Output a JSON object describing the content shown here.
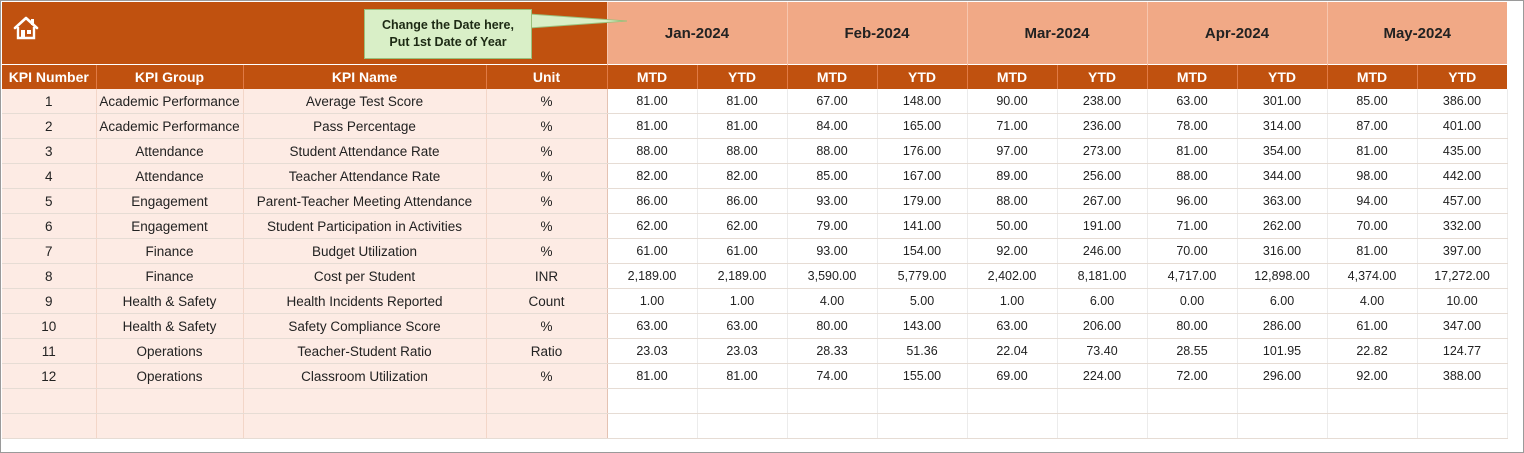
{
  "callout": {
    "line1": "Change the Date here,",
    "line2": "Put 1st Date of Year"
  },
  "months": [
    "Jan-2024",
    "Feb-2024",
    "Mar-2024",
    "Apr-2024",
    "May-2024"
  ],
  "headers": {
    "kpi_number": "KPI Number",
    "kpi_group": "KPI Group",
    "kpi_name": "KPI Name",
    "unit": "Unit",
    "mtd": "MTD",
    "ytd": "YTD"
  },
  "rows": [
    {
      "num": "1",
      "group": "Academic Performance",
      "name": "Average Test Score",
      "unit": "%",
      "values": [
        "81.00",
        "81.00",
        "67.00",
        "148.00",
        "90.00",
        "238.00",
        "63.00",
        "301.00",
        "85.00",
        "386.00"
      ]
    },
    {
      "num": "2",
      "group": "Academic Performance",
      "name": "Pass Percentage",
      "unit": "%",
      "values": [
        "81.00",
        "81.00",
        "84.00",
        "165.00",
        "71.00",
        "236.00",
        "78.00",
        "314.00",
        "87.00",
        "401.00"
      ]
    },
    {
      "num": "3",
      "group": "Attendance",
      "name": "Student Attendance Rate",
      "unit": "%",
      "values": [
        "88.00",
        "88.00",
        "88.00",
        "176.00",
        "97.00",
        "273.00",
        "81.00",
        "354.00",
        "81.00",
        "435.00"
      ]
    },
    {
      "num": "4",
      "group": "Attendance",
      "name": "Teacher Attendance Rate",
      "unit": "%",
      "values": [
        "82.00",
        "82.00",
        "85.00",
        "167.00",
        "89.00",
        "256.00",
        "88.00",
        "344.00",
        "98.00",
        "442.00"
      ]
    },
    {
      "num": "5",
      "group": "Engagement",
      "name": "Parent-Teacher Meeting Attendance",
      "unit": "%",
      "values": [
        "86.00",
        "86.00",
        "93.00",
        "179.00",
        "88.00",
        "267.00",
        "96.00",
        "363.00",
        "94.00",
        "457.00"
      ]
    },
    {
      "num": "6",
      "group": "Engagement",
      "name": "Student Participation in Activities",
      "unit": "%",
      "values": [
        "62.00",
        "62.00",
        "79.00",
        "141.00",
        "50.00",
        "191.00",
        "71.00",
        "262.00",
        "70.00",
        "332.00"
      ]
    },
    {
      "num": "7",
      "group": "Finance",
      "name": "Budget Utilization",
      "unit": "%",
      "values": [
        "61.00",
        "61.00",
        "93.00",
        "154.00",
        "92.00",
        "246.00",
        "70.00",
        "316.00",
        "81.00",
        "397.00"
      ]
    },
    {
      "num": "8",
      "group": "Finance",
      "name": "Cost per Student",
      "unit": "INR",
      "values": [
        "2,189.00",
        "2,189.00",
        "3,590.00",
        "5,779.00",
        "2,402.00",
        "8,181.00",
        "4,717.00",
        "12,898.00",
        "4,374.00",
        "17,272.00"
      ]
    },
    {
      "num": "9",
      "group": "Health & Safety",
      "name": "Health Incidents Reported",
      "unit": "Count",
      "values": [
        "1.00",
        "1.00",
        "4.00",
        "5.00",
        "1.00",
        "6.00",
        "0.00",
        "6.00",
        "4.00",
        "10.00"
      ]
    },
    {
      "num": "10",
      "group": "Health & Safety",
      "name": "Safety Compliance Score",
      "unit": "%",
      "values": [
        "63.00",
        "63.00",
        "80.00",
        "143.00",
        "63.00",
        "206.00",
        "80.00",
        "286.00",
        "61.00",
        "347.00"
      ]
    },
    {
      "num": "11",
      "group": "Operations",
      "name": "Teacher-Student Ratio",
      "unit": "Ratio",
      "values": [
        "23.03",
        "23.03",
        "28.33",
        "51.36",
        "22.04",
        "73.40",
        "28.55",
        "101.95",
        "22.82",
        "124.77"
      ]
    },
    {
      "num": "12",
      "group": "Operations",
      "name": "Classroom Utilization",
      "unit": "%",
      "values": [
        "81.00",
        "81.00",
        "74.00",
        "155.00",
        "69.00",
        "224.00",
        "72.00",
        "296.00",
        "92.00",
        "388.00"
      ]
    }
  ],
  "colors": {
    "header_dark": "#c0510f",
    "header_light": "#f1a986",
    "left_fill": "#fdebe4",
    "callout_fill": "#d9efc7"
  },
  "icons": {
    "home": "home-icon"
  }
}
